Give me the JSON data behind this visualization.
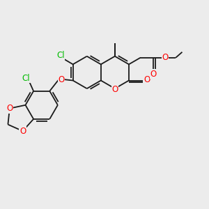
{
  "bg_color": "#ececec",
  "bond_color": "#1a1a1a",
  "bond_lw": 1.3,
  "O_color": "#ff0000",
  "Cl_color": "#00bb00",
  "C_color": "#1a1a1a",
  "font_size": 7.0,
  "figsize": [
    3.0,
    3.0
  ],
  "dpi": 100,
  "xlim": [
    0,
    10
  ],
  "ylim": [
    0,
    10
  ]
}
